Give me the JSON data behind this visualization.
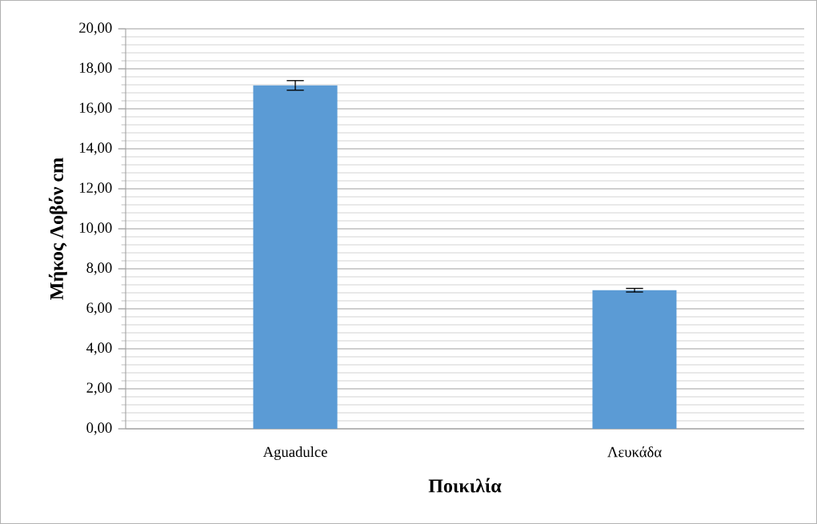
{
  "chart_data": {
    "type": "bar",
    "xlabel": "Ποικιλία",
    "ylabel": "Μήκος Λοβόν cm",
    "categories": [
      "Aguadulce",
      "Λευκάδα"
    ],
    "values": [
      17.17,
      6.93
    ],
    "errors": [
      0.24,
      0.09
    ],
    "color": "#5b9bd5",
    "ylim": [
      0,
      20
    ],
    "yticks": [
      {
        "value": 0,
        "label": "0,00"
      },
      {
        "value": 2,
        "label": "2,00"
      },
      {
        "value": 4,
        "label": "4,00"
      },
      {
        "value": 6,
        "label": "6,00"
      },
      {
        "value": 8,
        "label": "8,00"
      },
      {
        "value": 10,
        "label": "10,00"
      },
      {
        "value": 12,
        "label": "12,00"
      },
      {
        "value": 14,
        "label": "14,00"
      },
      {
        "value": 16,
        "label": "16,00"
      },
      {
        "value": 18,
        "label": "18,00"
      },
      {
        "value": 20,
        "label": "20,00"
      }
    ],
    "grid": "y"
  }
}
